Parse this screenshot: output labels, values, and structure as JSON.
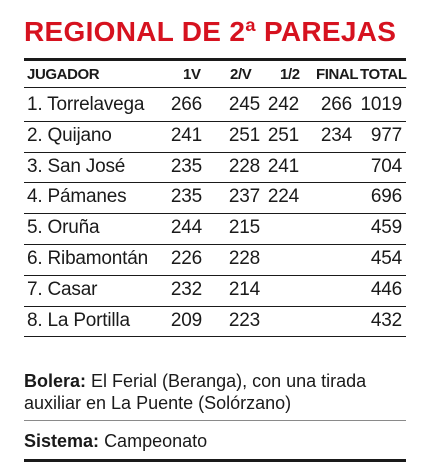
{
  "title": "REGIONAL DE 2ª PAREJAS",
  "columns": {
    "player": "JUGADOR",
    "r1": "1V",
    "r2": "2/V",
    "semi": "1/2",
    "final": "FINAL",
    "total": "TOTAL"
  },
  "rows": [
    {
      "player": "1. Torrelavega",
      "r1": "266",
      "r2": "245",
      "semi": "242",
      "final": "266",
      "total": "1019"
    },
    {
      "player": "2. Quijano",
      "r1": "241",
      "r2": "251",
      "semi": "251",
      "final": "234",
      "total": "977"
    },
    {
      "player": "3. San José",
      "r1": "235",
      "r2": "228",
      "semi": "241",
      "final": "",
      "total": "704"
    },
    {
      "player": "4. Pámanes",
      "r1": "235",
      "r2": "237",
      "semi": "224",
      "final": "",
      "total": "696"
    },
    {
      "player": "5. Oruña",
      "r1": "244",
      "r2": "215",
      "semi": "",
      "final": "",
      "total": "459"
    },
    {
      "player": "6. Ribamontán",
      "r1": "226",
      "r2": "228",
      "semi": "",
      "final": "",
      "total": "454"
    },
    {
      "player": "7. Casar",
      "r1": "232",
      "r2": "214",
      "semi": "",
      "final": "",
      "total": "446"
    },
    {
      "player": "8. La Portilla",
      "r1": "209",
      "r2": "223",
      "semi": "",
      "final": "",
      "total": "432"
    }
  ],
  "bolera": {
    "label": "Bolera:",
    "text": "El Ferial (Beranga), con una tirada auxiliar en La Puente (Solórzano)"
  },
  "sistema": {
    "label": "Sistema:",
    "text": "Campeonato"
  }
}
